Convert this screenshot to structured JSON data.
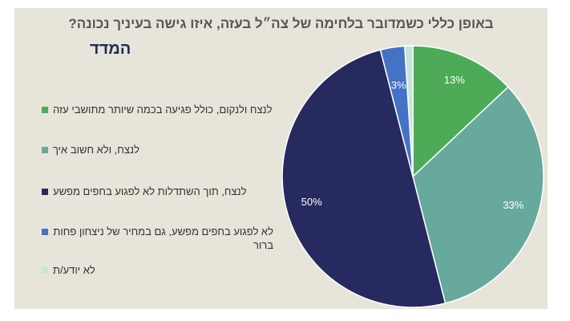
{
  "chart_data": {
    "type": "pie",
    "title": "באופן כללי כשמדובר בלחימה של צה״ל בעזה, איזו גישה בעיניך נכונה?",
    "logo": "המדד",
    "categories": [
      "לנצח ולנקום, כולל פגיעה בכמה שיותר מתושבי עזה",
      "לנצח, ולא חשוב איך",
      "לנצח, תוך השתדלות לא לפגוע בחפים מפשע",
      "לא לפגוע בחפים מפשע, גם במחיר של ניצחון פחות ברור",
      "לא יודע/ת"
    ],
    "values": [
      13,
      33,
      50,
      3,
      1
    ],
    "value_labels": [
      "13%",
      "33%",
      "50%",
      "3%",
      null
    ],
    "colors": [
      "#4dab57",
      "#67a99c",
      "#262a5f",
      "#4472c4",
      "#c5e6d5"
    ],
    "legend": "left"
  }
}
